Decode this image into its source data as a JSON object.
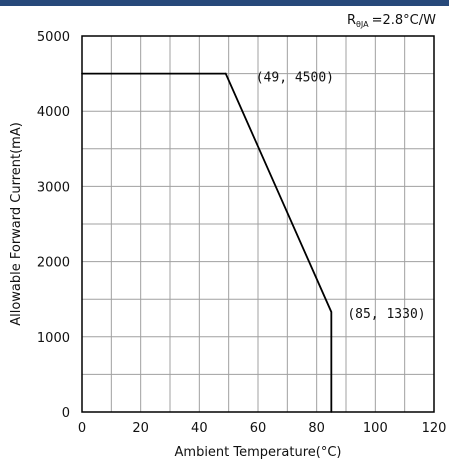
{
  "colors": {
    "top_bar": "#27497a",
    "grid": "#a0a0a0",
    "line": "#000000",
    "frame": "#000000"
  },
  "chart_data": {
    "type": "line",
    "x": [
      0,
      49,
      85,
      85
    ],
    "series": [
      {
        "values": [
          4500,
          4500,
          1330,
          0
        ]
      }
    ],
    "xlabel": "Ambient Temperature(°C)",
    "ylabel": "Allowable Forward Current(mA)",
    "xlim": [
      0,
      120
    ],
    "ylim": [
      0,
      5000
    ],
    "x_ticks": [
      0,
      20,
      40,
      60,
      80,
      100,
      120
    ],
    "y_ticks": [
      0,
      1000,
      2000,
      3000,
      4000,
      5000
    ],
    "x_tick_labels": [
      "0",
      "20",
      "40",
      "60",
      "80",
      "100",
      "120"
    ],
    "y_tick_labels": [
      "0",
      "1000",
      "2000",
      "3000",
      "4000",
      "5000"
    ],
    "x_minor_step": 10,
    "y_minor_step": 500,
    "grid": true,
    "annotations": [
      {
        "text": "(49, 4500)",
        "x": 49,
        "y": 4500
      },
      {
        "text": "(85, 1330)",
        "x": 85,
        "y": 1330
      }
    ],
    "thermal_resistance": {
      "symbol": "R",
      "subscript": "θJA",
      "value": "=2.8°C/W"
    }
  }
}
